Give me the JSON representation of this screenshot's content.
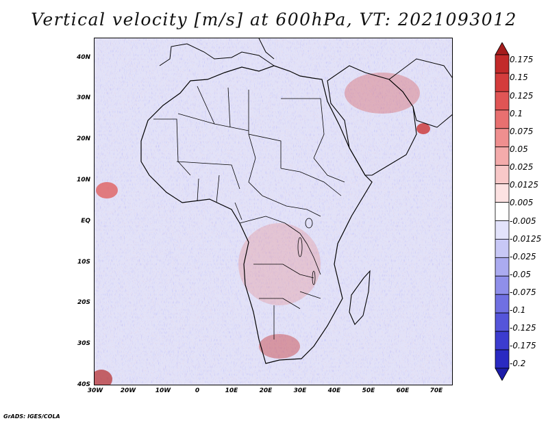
{
  "title": "Vertical velocity [m/s] at 600hPa, VT: 2021093012",
  "credit": "GrADS: IGES/COLA",
  "chart_data": {
    "type": "heatmap",
    "variable": "Vertical velocity",
    "units": "m/s",
    "level": "600hPa",
    "valid_time": "2021093012",
    "lat_range": [
      -40,
      45
    ],
    "lon_range": [
      -30,
      75
    ],
    "lat_ticks": [
      "40N",
      "30N",
      "20N",
      "10N",
      "EQ",
      "10S",
      "20S",
      "30S",
      "40S"
    ],
    "lon_ticks": [
      "30W",
      "20W",
      "10W",
      "0",
      "10E",
      "20E",
      "30E",
      "40E",
      "50E",
      "60E",
      "70E"
    ],
    "colorbar": {
      "labels": [
        "0.175",
        "0.15",
        "0.125",
        "0.1",
        "0.075",
        "0.05",
        "0.025",
        "0.0125",
        "0.005",
        "-0.005",
        "-0.0125",
        "-0.025",
        "-0.05",
        "-0.075",
        "-0.1",
        "-0.125",
        "-0.175",
        "-0.2"
      ],
      "colors": [
        "#a51d1d",
        "#c22a2a",
        "#d43c3c",
        "#e05555",
        "#e87070",
        "#ef8f8f",
        "#f4abab",
        "#f8c8c8",
        "#fce2e2",
        "#ffffff",
        "#e3e3fb",
        "#c8c8f6",
        "#ababf0",
        "#8f8fea",
        "#7070e2",
        "#5555da",
        "#3c3ccf",
        "#2a2ac2",
        "#1c1ca8"
      ]
    }
  }
}
